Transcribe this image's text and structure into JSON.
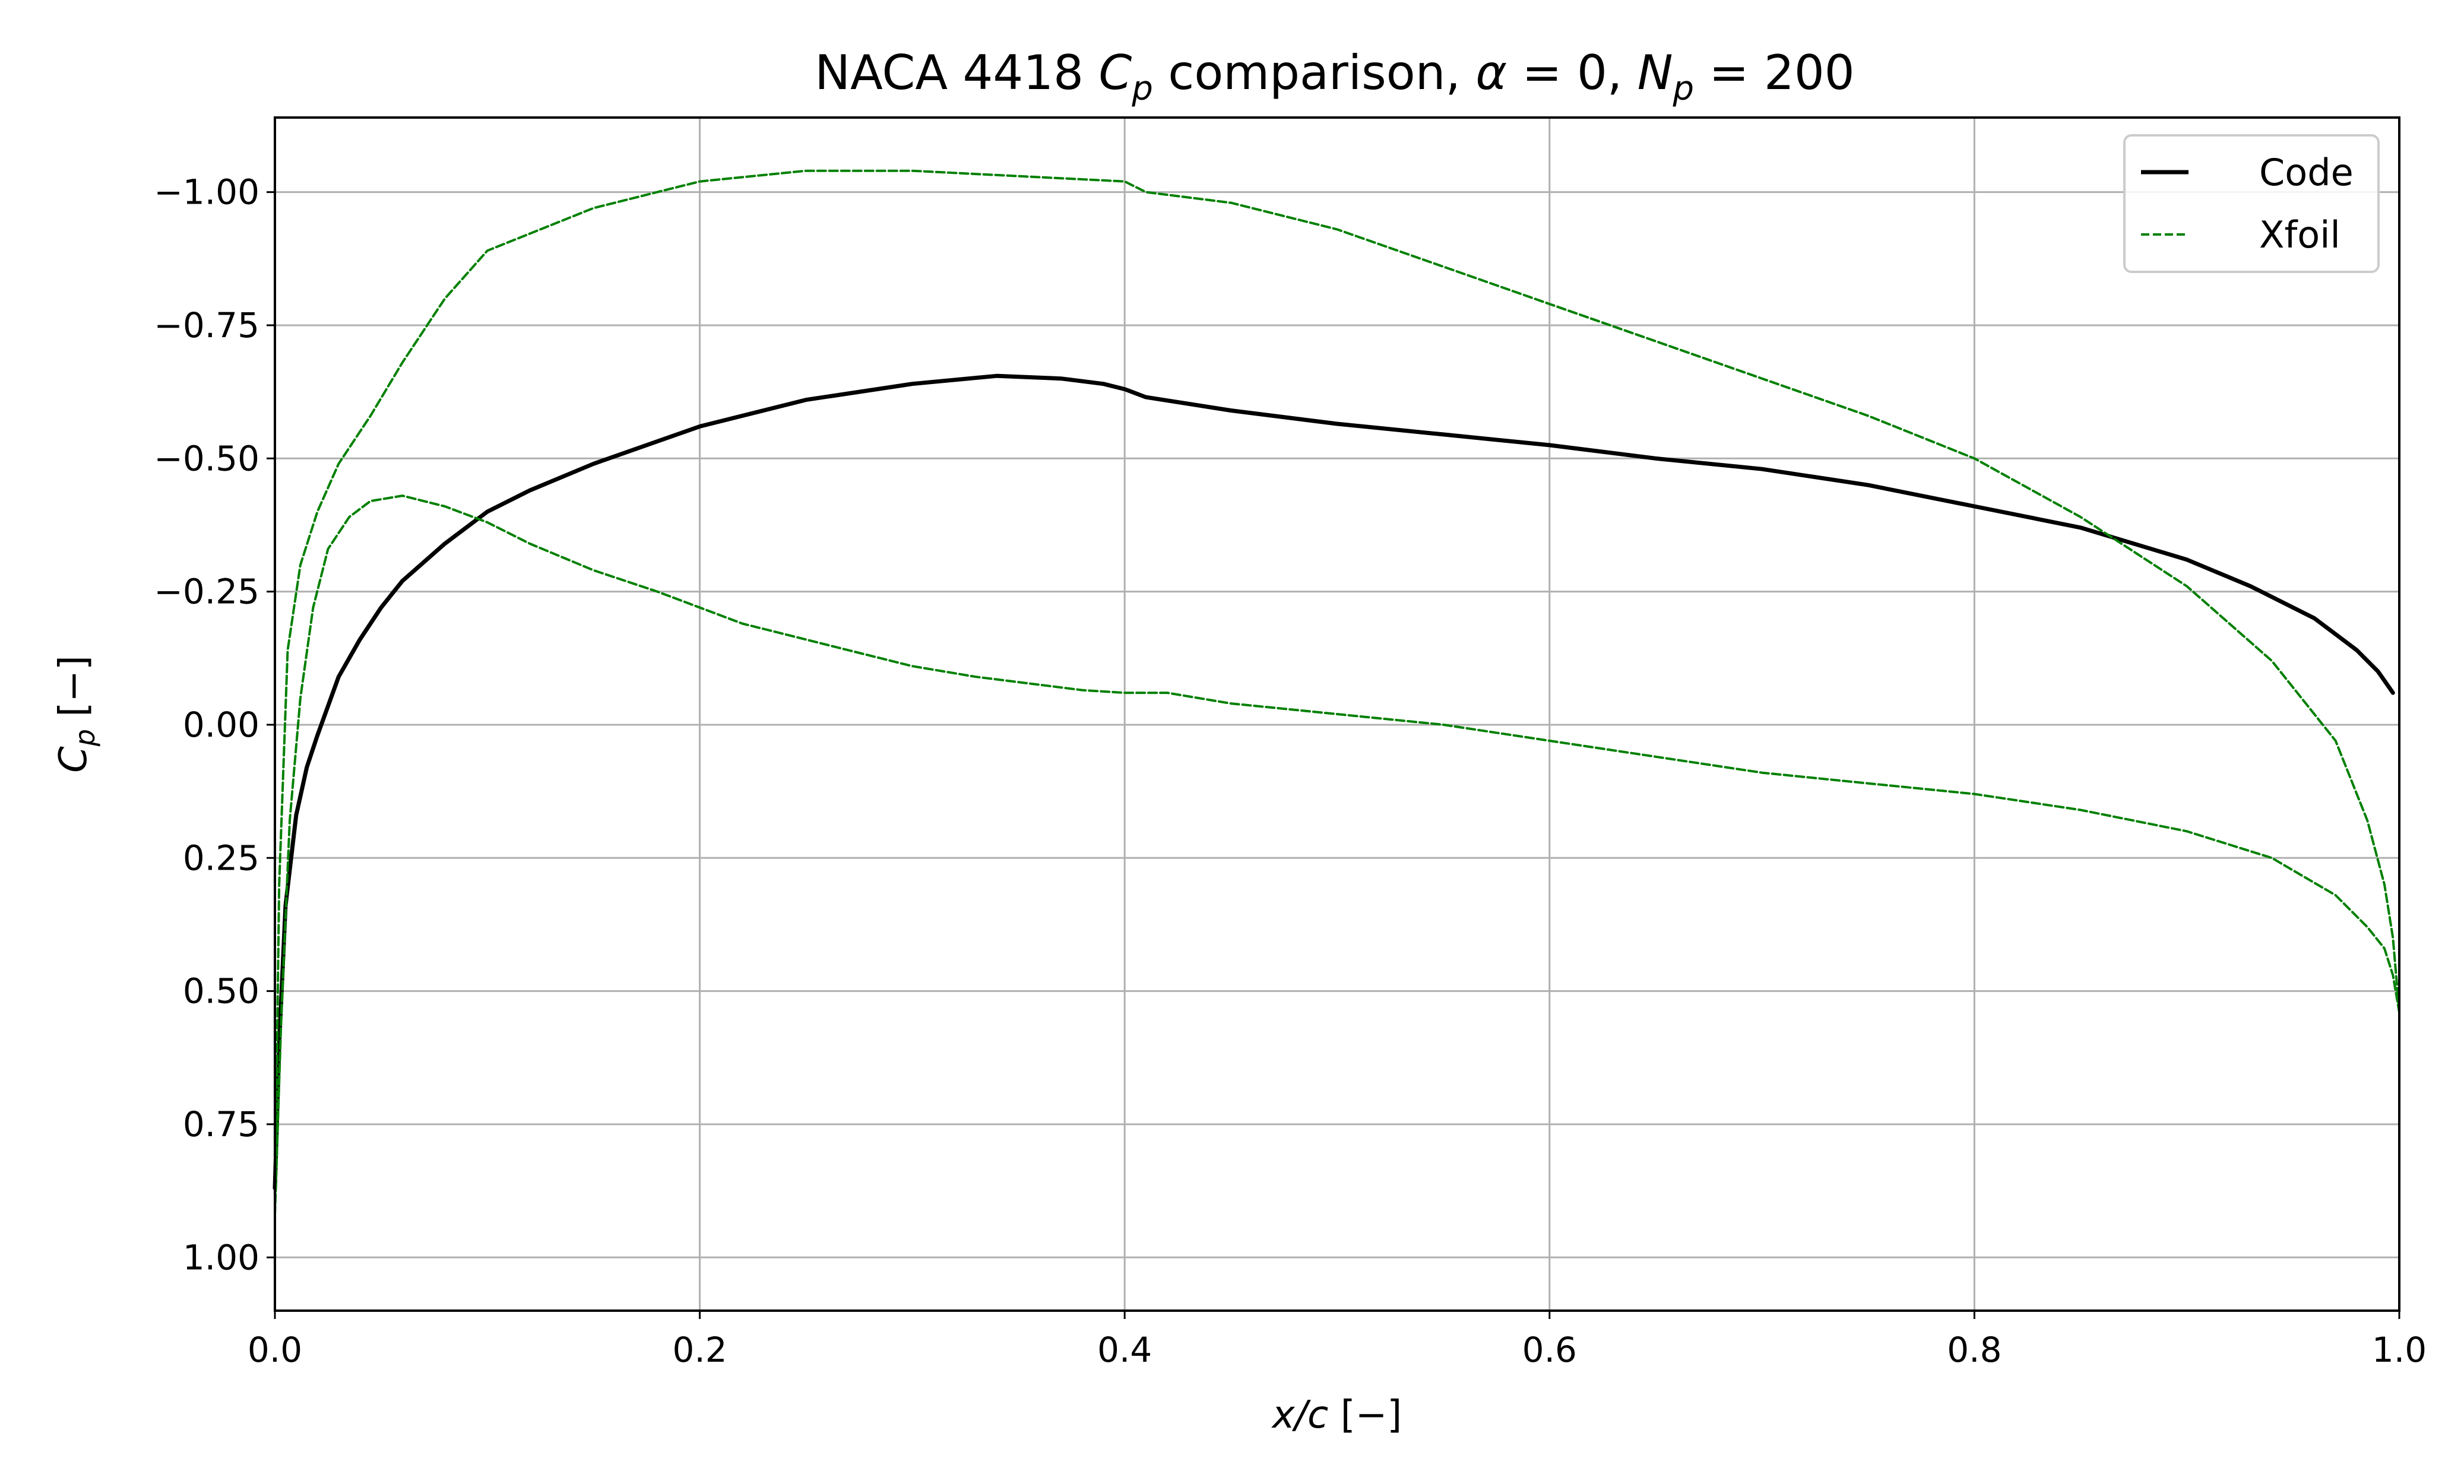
{
  "chart_data": {
    "type": "line",
    "title": "NACA 4418 C_p comparison, α = 0, N_p = 200",
    "title_parts": {
      "prefix": "NACA 4418 ",
      "cp_main": "C",
      "cp_sub": "p",
      "middle": " comparison, ",
      "alpha": "α",
      "alpha_eq": " = 0, ",
      "np_main": "N",
      "np_sub": "p",
      "np_eq": " = 200"
    },
    "xlabel": "x/c [−]",
    "xlabel_parts": {
      "var": "x/c",
      "unit": " [−]"
    },
    "ylabel": "C_p [−]",
    "ylabel_parts": {
      "main": "C",
      "sub": "p",
      "unit": " [−]"
    },
    "xlim": [
      0.0,
      1.0
    ],
    "ylim": [
      1.1,
      -1.14
    ],
    "y_inverted": true,
    "grid": true,
    "legend_position": "top-right",
    "xticks": [
      0.0,
      0.2,
      0.4,
      0.6,
      0.8,
      1.0
    ],
    "xtick_labels": [
      "0.0",
      "0.2",
      "0.4",
      "0.6",
      "0.8",
      "1.0"
    ],
    "yticks": [
      -1.0,
      -0.75,
      -0.5,
      -0.25,
      0.0,
      0.25,
      0.5,
      0.75,
      1.0
    ],
    "ytick_labels": [
      "−1.00",
      "−0.75",
      "−0.50",
      "−0.25",
      "0.00",
      "0.25",
      "0.50",
      "0.75",
      "1.00"
    ],
    "series": [
      {
        "name": "Code",
        "color": "#000000",
        "style": "solid",
        "x": [
          0.0,
          0.002,
          0.005,
          0.01,
          0.015,
          0.02,
          0.03,
          0.04,
          0.05,
          0.06,
          0.08,
          0.1,
          0.12,
          0.15,
          0.2,
          0.25,
          0.3,
          0.34,
          0.37,
          0.39,
          0.4,
          0.41,
          0.45,
          0.5,
          0.55,
          0.6,
          0.65,
          0.7,
          0.75,
          0.8,
          0.85,
          0.9,
          0.93,
          0.96,
          0.98,
          0.99,
          0.997
        ],
        "y": [
          0.87,
          0.6,
          0.34,
          0.17,
          0.08,
          0.02,
          -0.09,
          -0.16,
          -0.22,
          -0.27,
          -0.34,
          -0.4,
          -0.44,
          -0.49,
          -0.56,
          -0.61,
          -0.64,
          -0.655,
          -0.65,
          -0.64,
          -0.63,
          -0.615,
          -0.59,
          -0.565,
          -0.545,
          -0.525,
          -0.5,
          -0.48,
          -0.45,
          -0.41,
          -0.37,
          -0.31,
          -0.26,
          -0.2,
          -0.14,
          -0.1,
          -0.06
        ]
      },
      {
        "name": "Xfoil",
        "color": "#008000",
        "style": "dashed",
        "x": [
          0.0,
          0.003,
          0.007,
          0.012,
          0.018,
          0.025,
          0.035,
          0.045,
          0.06,
          0.08,
          0.1,
          0.12,
          0.15,
          0.18,
          0.2,
          0.22,
          0.25,
          0.28,
          0.3,
          0.33,
          0.36,
          0.38,
          0.4,
          0.42,
          0.45,
          0.5,
          0.55,
          0.6,
          0.65,
          0.7,
          0.75,
          0.8,
          0.85,
          0.9,
          0.94,
          0.97,
          0.985,
          0.993,
          0.997,
          1.0,
          0.997,
          0.993,
          0.985,
          0.97,
          0.94,
          0.9,
          0.85,
          0.8,
          0.75,
          0.7,
          0.65,
          0.6,
          0.55,
          0.5,
          0.45,
          0.41,
          0.4,
          0.35,
          0.3,
          0.25,
          0.2,
          0.15,
          0.1,
          0.08,
          0.06,
          0.045,
          0.03,
          0.02,
          0.012,
          0.006,
          0.002,
          0.0
        ],
        "y": [
          0.92,
          0.55,
          0.18,
          -0.05,
          -0.22,
          -0.33,
          -0.39,
          -0.42,
          -0.43,
          -0.41,
          -0.38,
          -0.34,
          -0.29,
          -0.25,
          -0.22,
          -0.19,
          -0.16,
          -0.13,
          -0.11,
          -0.09,
          -0.075,
          -0.065,
          -0.06,
          -0.06,
          -0.04,
          -0.02,
          0.0,
          0.03,
          0.06,
          0.09,
          0.11,
          0.13,
          0.16,
          0.2,
          0.25,
          0.32,
          0.38,
          0.42,
          0.47,
          0.54,
          0.4,
          0.3,
          0.18,
          0.03,
          -0.12,
          -0.26,
          -0.39,
          -0.5,
          -0.58,
          -0.65,
          -0.72,
          -0.79,
          -0.86,
          -0.93,
          -0.98,
          -1.0,
          -1.02,
          -1.03,
          -1.04,
          -1.04,
          -1.02,
          -0.97,
          -0.89,
          -0.8,
          -0.68,
          -0.58,
          -0.49,
          -0.4,
          -0.3,
          -0.14,
          0.3,
          0.92
        ]
      }
    ]
  }
}
